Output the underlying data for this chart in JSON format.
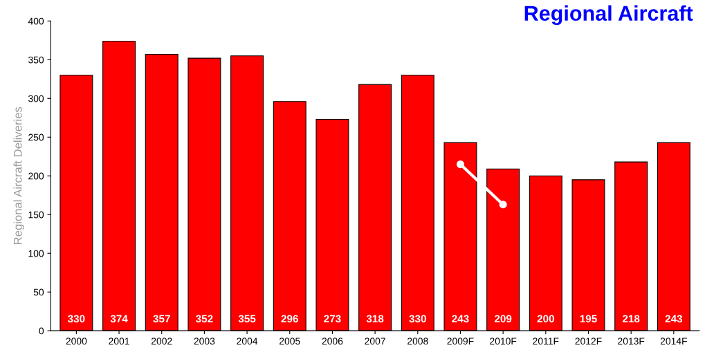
{
  "chart_data": {
    "type": "bar",
    "title": "Regional Aircraft",
    "ylabel": "Regional Aircraft Deliveries",
    "categories": [
      "2000",
      "2001",
      "2002",
      "2003",
      "2004",
      "2005",
      "2006",
      "2007",
      "2008",
      "2009F",
      "2010F",
      "2011F",
      "2012F",
      "2013F",
      "2014F"
    ],
    "series": [
      {
        "color": "#ff0000",
        "values": [
          330,
          374,
          357,
          352,
          355,
          296,
          273,
          318,
          330,
          243,
          209,
          200,
          195,
          218,
          243
        ],
        "value_labels": [
          "330",
          "374",
          "357",
          "352",
          "355",
          "296",
          "273",
          "318",
          "330",
          "243",
          "209",
          "200",
          "195",
          "218",
          "243"
        ]
      },
      {
        "type": "line",
        "color": "#ffffff",
        "marker": "circle",
        "values": [
          null,
          null,
          null,
          null,
          null,
          null,
          null,
          null,
          null,
          215,
          163,
          null,
          null,
          null,
          null
        ]
      }
    ],
    "ylim": [
      0,
      400
    ],
    "yticks": [
      0,
      50,
      100,
      150,
      200,
      250,
      300,
      350,
      400
    ]
  }
}
